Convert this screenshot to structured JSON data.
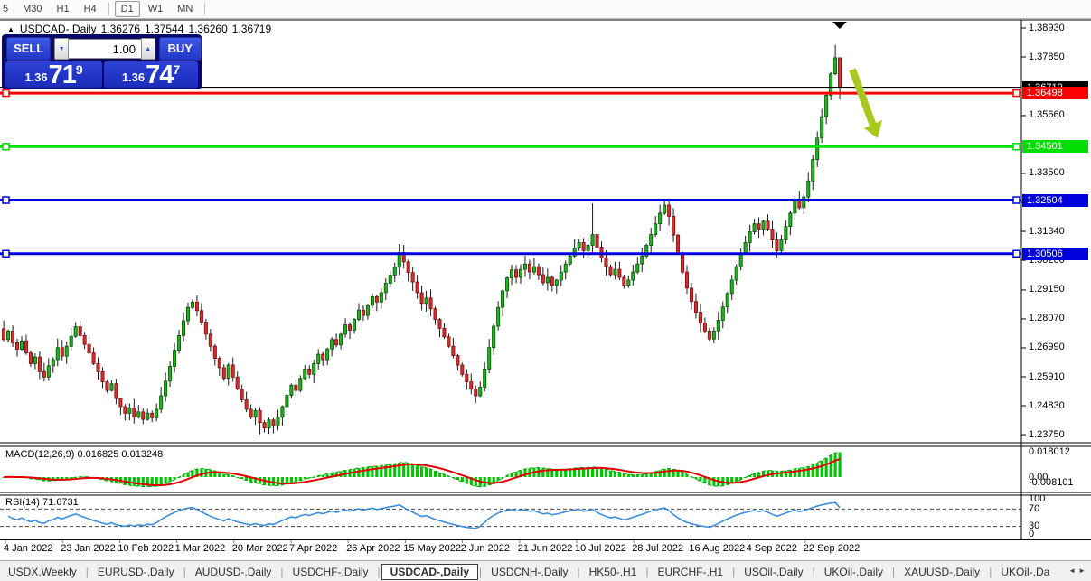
{
  "toolbar": {
    "items": [
      {
        "type": "button",
        "label": "5",
        "clipped": true
      },
      {
        "type": "button",
        "label": "M30"
      },
      {
        "type": "button",
        "label": "H1"
      },
      {
        "type": "button",
        "label": "H4"
      },
      {
        "type": "separator"
      },
      {
        "type": "button",
        "label": "D1",
        "active": true
      },
      {
        "type": "button",
        "label": "W1"
      },
      {
        "type": "button",
        "label": "MN"
      },
      {
        "type": "separator"
      }
    ]
  },
  "chart_header": {
    "collapse_icon": "▲",
    "title": "USDCAD-,Daily",
    "open": "1.36276",
    "high": "1.37544",
    "low": "1.36260",
    "close": "1.36719"
  },
  "trade_panel": {
    "sell_label": "SELL",
    "buy_label": "BUY",
    "volume": "1.00",
    "down_icon": "▼",
    "up_icon": "▲",
    "sell_price": {
      "base": "1.36",
      "big": "71",
      "sup": "9"
    },
    "buy_price": {
      "base": "1.36",
      "big": "74",
      "sup": "7"
    }
  },
  "colors": {
    "bull": "#1db41d",
    "bull_border": "#0b4d0b",
    "bear": "#d23030",
    "bear_border": "#7c0c0c",
    "wick": "#1a1a1a",
    "bid_line": "#000000",
    "red_level": "#fe0000",
    "green_level": "#00dd00",
    "blue_level": "#0000dd",
    "macd_hist": "#00c400",
    "macd_line": "#00a000",
    "macd_signal": "#e40000",
    "rsi_line": "#3e8ed8",
    "arrow_annotation": "#a9c81f",
    "accent_blue": "#2b46d9",
    "panel_navy": "#0a0a66"
  },
  "chart_data": {
    "type": "candlestick",
    "symbol": "USDCAD-",
    "timeframe": "Daily",
    "ylim": [
      1.2375,
      1.3893
    ],
    "closes": [
      1.273,
      1.2762,
      1.2718,
      1.2694,
      1.2725,
      1.268,
      1.264,
      1.2665,
      1.261,
      1.259,
      1.2632,
      1.2655,
      1.27,
      1.2668,
      1.2705,
      1.2742,
      1.2778,
      1.2745,
      1.2712,
      1.268,
      1.264,
      1.261,
      1.2572,
      1.254,
      1.2565,
      1.251,
      1.248,
      1.2455,
      1.2475,
      1.244,
      1.246,
      1.2432,
      1.2455,
      1.2438,
      1.247,
      1.252,
      1.2575,
      1.263,
      1.269,
      1.2745,
      1.28,
      1.285,
      1.287,
      1.2838,
      1.2795,
      1.275,
      1.2705,
      1.266,
      1.2625,
      1.2585,
      1.2635,
      1.259,
      1.2545,
      1.2505,
      1.247,
      1.244,
      1.2465,
      1.242,
      1.24,
      1.243,
      1.2408,
      1.244,
      1.248,
      1.2522,
      1.256,
      1.254,
      1.2585,
      1.262,
      1.26,
      1.264,
      1.2675,
      1.2655,
      1.2695,
      1.273,
      1.271,
      1.275,
      1.2785,
      1.2765,
      1.2805,
      1.284,
      1.282,
      1.2858,
      1.289,
      1.287,
      1.2905,
      1.294,
      1.297,
      1.3,
      1.3055,
      1.302,
      1.298,
      1.2945,
      1.2905,
      1.2865,
      1.2885,
      1.2845,
      1.2805,
      1.2772,
      1.274,
      1.2705,
      1.267,
      1.2635,
      1.26,
      1.2572,
      1.2545,
      1.252,
      1.2552,
      1.262,
      1.27,
      1.278,
      1.285,
      1.2912,
      1.296,
      1.299,
      1.2962,
      1.2992,
      1.3012,
      1.2982,
      1.3002,
      1.2972,
      1.2942,
      1.2962,
      1.2932,
      1.2952,
      1.2982,
      1.3012,
      1.3042,
      1.3072,
      1.3092,
      1.3062,
      1.3082,
      1.3122,
      1.3075,
      1.3035,
      1.3002,
      1.2972,
      1.2992,
      1.2962,
      1.2932,
      1.2952,
      1.2982,
      1.3012,
      1.3042,
      1.3082,
      1.3122,
      1.3162,
      1.3202,
      1.3232,
      1.319,
      1.312,
      1.3052,
      1.2982,
      1.2922,
      1.2872,
      1.2832,
      1.2792,
      1.2762,
      1.2732,
      1.2762,
      1.2802,
      1.2852,
      1.2902,
      1.2952,
      1.3002,
      1.3052,
      1.3092,
      1.3132,
      1.3162,
      1.3142,
      1.3172,
      1.3142,
      1.3102,
      1.3062,
      1.3102,
      1.3152,
      1.3202,
      1.3252,
      1.3222,
      1.3262,
      1.3322,
      1.3402,
      1.3482,
      1.3562,
      1.3642,
      1.3722,
      1.3782,
      1.3672
    ],
    "wick_overrides": {
      "57": {
        "l": 1.2376
      },
      "131": {
        "h": 1.3238
      },
      "185": {
        "h": 1.383
      },
      "186": {
        "h": 1.3754,
        "l": 1.3626
      }
    },
    "x_axis_labels": [
      "4 Jan 2022",
      "23 Jan 2022",
      "10 Feb 2022",
      "1 Mar 2022",
      "20 Mar 2022",
      "7 Apr 2022",
      "26 Apr 2022",
      "15 May 2022",
      "2 Jun 2022",
      "21 Jun 2022",
      "10 Jul 2022",
      "28 Jul 2022",
      "16 Aug 2022",
      "4 Sep 2022",
      "22 Sep 2022"
    ],
    "price_axis_labels": [
      {
        "text": "1.38930",
        "price": 1.3893
      },
      {
        "text": "1.37850",
        "price": 1.3785
      },
      {
        "text": "1.35660",
        "price": 1.3566
      },
      {
        "text": "1.33500",
        "price": 1.335
      },
      {
        "text": "1.32420",
        "price": 1.3242
      },
      {
        "text": "1.31340",
        "price": 1.3134
      },
      {
        "text": "1.30260",
        "price": 1.3026
      },
      {
        "text": "1.29150",
        "price": 1.2915
      },
      {
        "text": "1.28070",
        "price": 1.2807
      },
      {
        "text": "1.26990",
        "price": 1.2699
      },
      {
        "text": "1.25910",
        "price": 1.2591
      },
      {
        "text": "1.24830",
        "price": 1.2483
      },
      {
        "text": "1.23750",
        "price": 1.2375
      }
    ],
    "levels": [
      {
        "label": "1.36719",
        "price": 1.36719,
        "color": "#000000",
        "width": 1.2,
        "kind": "bid",
        "handles": false
      },
      {
        "label": "1.36498",
        "price": 1.36498,
        "color": "#fe0000",
        "width": 3,
        "kind": "hline",
        "handles": true
      },
      {
        "label": "1.34501",
        "price": 1.34501,
        "color": "#00dd00",
        "width": 3,
        "kind": "hline",
        "handles": true
      },
      {
        "label": "1.32504",
        "price": 1.32504,
        "color": "#0000dd",
        "width": 3,
        "kind": "hline",
        "handles": true
      },
      {
        "label": "1.30506",
        "price": 1.30506,
        "color": "#0000dd",
        "width": 3,
        "kind": "hline",
        "handles": true
      }
    ],
    "macd": {
      "label": "MACD(12,26,9)",
      "value_main": "0.016825",
      "value_signal": "0.013248",
      "fast": 12,
      "slow": 26,
      "signal": 9,
      "axis_labels": [
        {
          "text": "0.018012",
          "value": 0.018012
        },
        {
          "text": "0.00",
          "value": 0
        },
        {
          "text": "-0.008101",
          "value": -0.008101
        }
      ]
    },
    "rsi": {
      "label": "RSI(14)",
      "value": "71.6731",
      "period": 14,
      "axis_labels": [
        {
          "text": "100",
          "value": 100
        },
        {
          "text": "70",
          "value": 70
        },
        {
          "text": "30",
          "value": 30
        },
        {
          "text": "0",
          "value": 0
        }
      ],
      "guides": [
        70,
        30
      ]
    },
    "annotations": [
      {
        "type": "down-right-arrow",
        "color": "#a9c81f"
      },
      {
        "type": "top-triangle-marker",
        "color": "#000000"
      }
    ]
  },
  "tabs": {
    "items": [
      "USDX,Weekly",
      "EURUSD-,Daily",
      "AUDUSD-,Daily",
      "USDCHF-,Daily",
      "USDCAD-,Daily",
      "USDCNH-,Daily",
      "HK50-,H1",
      "EURCHF-,H1",
      "USOil-,Daily",
      "UKOil-,Daily",
      "XAUUSD-,Daily",
      "UKOil-,Da"
    ],
    "active_index": 4,
    "scroll_left_icon": "◄",
    "scroll_right_icon": "►"
  }
}
